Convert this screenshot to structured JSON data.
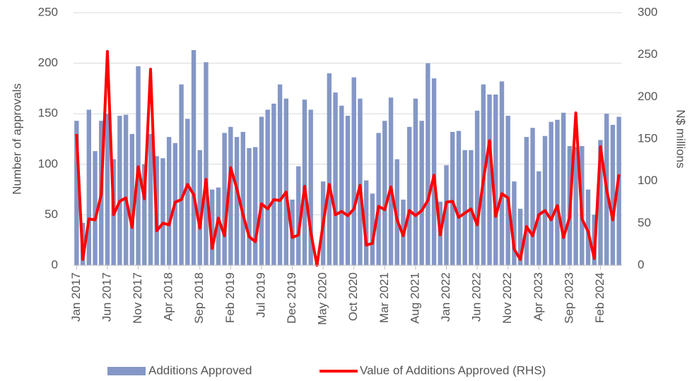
{
  "chart_data": {
    "type": "bar_line",
    "y_label": "Number of approvals",
    "y2_label": "N$ millions",
    "categories": [
      "Jan 2017",
      null,
      null,
      null,
      null,
      "Jun 2017",
      null,
      null,
      null,
      null,
      "Nov 2017",
      null,
      null,
      null,
      null,
      "Apr 2018",
      null,
      null,
      null,
      null,
      "Sep 2018",
      null,
      null,
      null,
      null,
      "Feb 2019",
      null,
      null,
      null,
      null,
      "Jul 2019",
      null,
      null,
      null,
      null,
      "Dec 2019",
      null,
      null,
      null,
      null,
      "May 2020",
      null,
      null,
      null,
      null,
      "Oct 2020",
      null,
      null,
      null,
      null,
      "Mar 2021",
      null,
      null,
      null,
      null,
      "Aug 2021",
      null,
      null,
      null,
      null,
      "Jan 2022",
      null,
      null,
      null,
      null,
      "Jun 2022",
      null,
      null,
      null,
      null,
      "Nov 2022",
      null,
      null,
      null,
      null,
      "Apr 2023",
      null,
      null,
      null,
      null,
      "Sep 2023",
      null,
      null,
      null,
      null,
      "Feb 2024",
      null,
      null,
      null
    ],
    "series": [
      {
        "name": "Additions Approved",
        "type": "bar",
        "color": "#8497c6",
        "values": [
          143,
          42,
          154,
          113,
          143,
          150,
          105,
          148,
          149,
          130,
          197,
          100,
          130,
          108,
          106,
          127,
          121,
          179,
          145,
          213,
          114,
          201,
          75,
          77,
          131,
          137,
          127,
          132,
          116,
          117,
          147,
          154,
          160,
          179,
          165,
          65,
          98,
          164,
          154,
          2,
          83,
          190,
          171,
          158,
          148,
          186,
          165,
          84,
          71,
          131,
          143,
          166,
          105,
          65,
          137,
          165,
          143,
          200,
          185,
          63,
          99,
          132,
          133,
          114,
          114,
          153,
          179,
          169,
          169,
          182,
          148,
          83,
          56,
          127,
          136,
          93,
          128,
          142,
          144,
          151,
          118,
          117,
          118,
          75,
          50,
          124,
          150,
          139,
          147
        ]
      },
      {
        "name": "Value of Additions Approved (RHS)",
        "type": "line",
        "axis": "y2",
        "color": "#ff0000",
        "values": [
          156,
          7,
          55,
          54,
          84,
          254,
          60,
          76,
          80,
          45,
          117,
          79,
          233,
          41,
          50,
          48,
          75,
          78,
          96,
          84,
          44,
          102,
          20,
          56,
          35,
          116,
          91,
          60,
          34,
          28,
          73,
          67,
          78,
          77,
          87,
          33,
          36,
          94,
          39,
          0,
          49,
          96,
          60,
          64,
          59,
          67,
          95,
          24,
          26,
          70,
          66,
          93,
          54,
          35,
          65,
          59,
          65,
          77,
          107,
          36,
          75,
          76,
          57,
          62,
          67,
          48,
          101,
          148,
          58,
          85,
          80,
          19,
          7,
          46,
          35,
          60,
          65,
          54,
          71,
          33,
          57,
          181,
          55,
          40,
          8,
          141,
          90,
          54,
          108
        ]
      }
    ],
    "ylim": [
      0,
      250
    ],
    "yticks": [
      0,
      50,
      100,
      150,
      200,
      250
    ],
    "y2lim": [
      0,
      300
    ],
    "y2ticks": [
      0,
      50,
      100,
      150,
      200,
      250,
      300
    ],
    "grid": true,
    "legend": "bottom"
  }
}
